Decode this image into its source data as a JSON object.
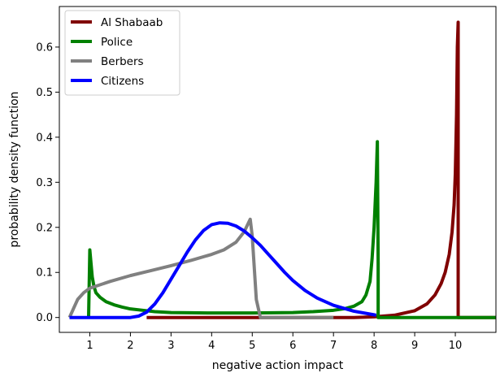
{
  "chart_data": {
    "type": "line",
    "xlabel": "negative action impact",
    "ylabel": "probability density function",
    "xlim": [
      0.25,
      11
    ],
    "ylim": [
      -0.033,
      0.69
    ],
    "xticks": [
      1,
      2,
      3,
      4,
      5,
      6,
      7,
      8,
      9,
      10
    ],
    "yticks": [
      0.0,
      0.1,
      0.2,
      0.3,
      0.4,
      0.5,
      0.6
    ],
    "grid": false,
    "legend_position": "top-left",
    "series": [
      {
        "name": "Al Shabaab",
        "color": "#800000",
        "x": [
          2.4,
          4,
          6,
          7.5,
          8,
          8.5,
          9.0,
          9.3,
          9.5,
          9.65,
          9.75,
          9.85,
          9.92,
          9.97,
          10.0,
          10.03,
          10.05,
          10.07,
          10.07,
          11
        ],
        "y": [
          0.0,
          0.0,
          0.0,
          0.0,
          0.0015,
          0.005,
          0.015,
          0.03,
          0.05,
          0.075,
          0.1,
          0.14,
          0.19,
          0.25,
          0.32,
          0.45,
          0.6,
          0.655,
          0.0,
          0.0
        ]
      },
      {
        "name": "Police",
        "color": "#008000",
        "x": [
          0.97,
          1.0,
          1.03,
          1.06,
          1.1,
          1.15,
          1.25,
          1.4,
          1.6,
          1.8,
          2.0,
          2.3,
          2.6,
          3.0,
          3.5,
          4.0,
          4.5,
          5.0,
          5.5,
          6.0,
          6.5,
          7.0,
          7.3,
          7.5,
          7.7,
          7.8,
          7.9,
          7.95,
          8.0,
          8.05,
          8.08,
          8.1,
          8.1,
          9,
          10,
          11
        ],
        "y": [
          0.0,
          0.15,
          0.12,
          0.09,
          0.07,
          0.055,
          0.045,
          0.035,
          0.028,
          0.023,
          0.019,
          0.016,
          0.013,
          0.011,
          0.0105,
          0.01,
          0.01,
          0.01,
          0.0105,
          0.011,
          0.013,
          0.016,
          0.02,
          0.025,
          0.035,
          0.05,
          0.08,
          0.13,
          0.2,
          0.3,
          0.39,
          0.12,
          0.0,
          0.0,
          0.0,
          0.0
        ]
      },
      {
        "name": "Berbers",
        "color": "#808080",
        "x": [
          0.5,
          0.6,
          0.7,
          0.85,
          1.0,
          1.5,
          2.0,
          2.5,
          3.0,
          3.5,
          4.0,
          4.3,
          4.6,
          4.8,
          4.95,
          5.0,
          5.1,
          5.2,
          7
        ],
        "y": [
          0.0,
          0.02,
          0.04,
          0.055,
          0.065,
          0.08,
          0.093,
          0.104,
          0.115,
          0.127,
          0.14,
          0.15,
          0.167,
          0.19,
          0.218,
          0.18,
          0.04,
          0.0,
          0.0
        ]
      },
      {
        "name": "Citizens",
        "color": "#0000ff",
        "x": [
          0.5,
          1.0,
          1.5,
          2.0,
          2.2,
          2.4,
          2.6,
          2.8,
          3.0,
          3.2,
          3.4,
          3.6,
          3.8,
          4.0,
          4.2,
          4.4,
          4.6,
          4.8,
          5.0,
          5.2,
          5.4,
          5.6,
          5.8,
          6.0,
          6.3,
          6.6,
          7.0,
          7.5,
          8.0,
          8.05
        ],
        "y": [
          0.0,
          0.0,
          0.0,
          0.0,
          0.003,
          0.012,
          0.03,
          0.055,
          0.085,
          0.115,
          0.145,
          0.172,
          0.193,
          0.206,
          0.21,
          0.209,
          0.203,
          0.192,
          0.177,
          0.16,
          0.14,
          0.12,
          0.1,
          0.082,
          0.06,
          0.043,
          0.027,
          0.014,
          0.006,
          0.005
        ]
      }
    ]
  }
}
